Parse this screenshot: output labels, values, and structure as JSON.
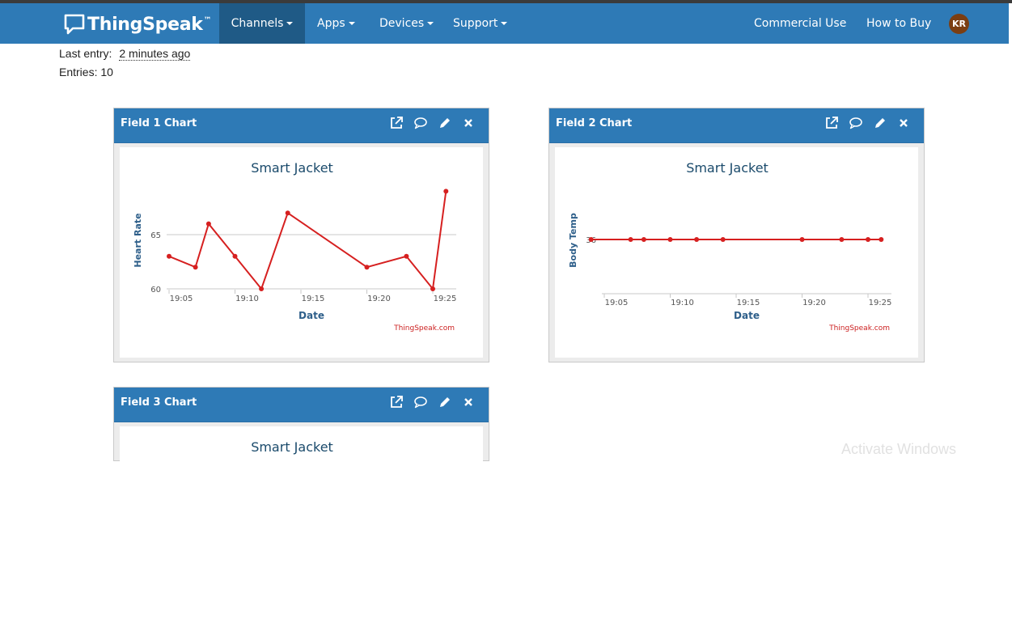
{
  "nav": {
    "brand": "ThingSpeak",
    "brand_mark": "™",
    "left_items": [
      {
        "label": "Channels",
        "active": true
      },
      {
        "label": "Apps"
      },
      {
        "label": "Devices"
      },
      {
        "label": "Support"
      }
    ],
    "right_items": [
      "Commercial Use",
      "How to Buy"
    ],
    "avatar_initials": "KR"
  },
  "channel_info": {
    "last_entry_label": "Last entry:",
    "last_entry_value": "2 minutes ago",
    "entries_text": "Entries: 10"
  },
  "panels": [
    {
      "title": "Field 1 Chart"
    },
    {
      "title": "Field 2 Chart"
    },
    {
      "title": "Field 3 Chart"
    }
  ],
  "watermark": "Activate Windows",
  "chart_data": [
    {
      "type": "line",
      "title": "Smart Jacket",
      "xlabel": "Date",
      "ylabel": "Heart Rate",
      "credit": "ThingSpeak.com",
      "x_ticks": [
        "19:05",
        "19:10",
        "19:15",
        "19:20",
        "19:25"
      ],
      "y_ticks": [
        60,
        65
      ],
      "ylim": [
        59.5,
        68
      ],
      "grid": true,
      "color": "#d62020",
      "series": [
        {
          "x": [
            "19:05",
            "19:07",
            "19:08",
            "19:10",
            "19:12",
            "19:14",
            "19:20",
            "19:23",
            "19:25",
            "19:26"
          ],
          "values": [
            63,
            62,
            66,
            63,
            60,
            67,
            62,
            63,
            60,
            69
          ]
        }
      ]
    },
    {
      "type": "line",
      "title": "Smart Jacket",
      "xlabel": "Date",
      "ylabel": "Body Temp",
      "credit": "ThingSpeak.com",
      "x_ticks": [
        "19:05",
        "19:10",
        "19:15",
        "19:20",
        "19:25"
      ],
      "y_ticks": [
        36
      ],
      "grid": true,
      "color": "#d62020",
      "series": [
        {
          "x": [
            "19:04",
            "19:07",
            "19:08",
            "19:10",
            "19:12",
            "19:14",
            "19:20",
            "19:23",
            "19:25",
            "19:26"
          ],
          "values": [
            36,
            36,
            36,
            36,
            36,
            36,
            36,
            36,
            36,
            36
          ]
        }
      ]
    },
    {
      "type": "line",
      "title": "Smart Jacket"
    }
  ]
}
